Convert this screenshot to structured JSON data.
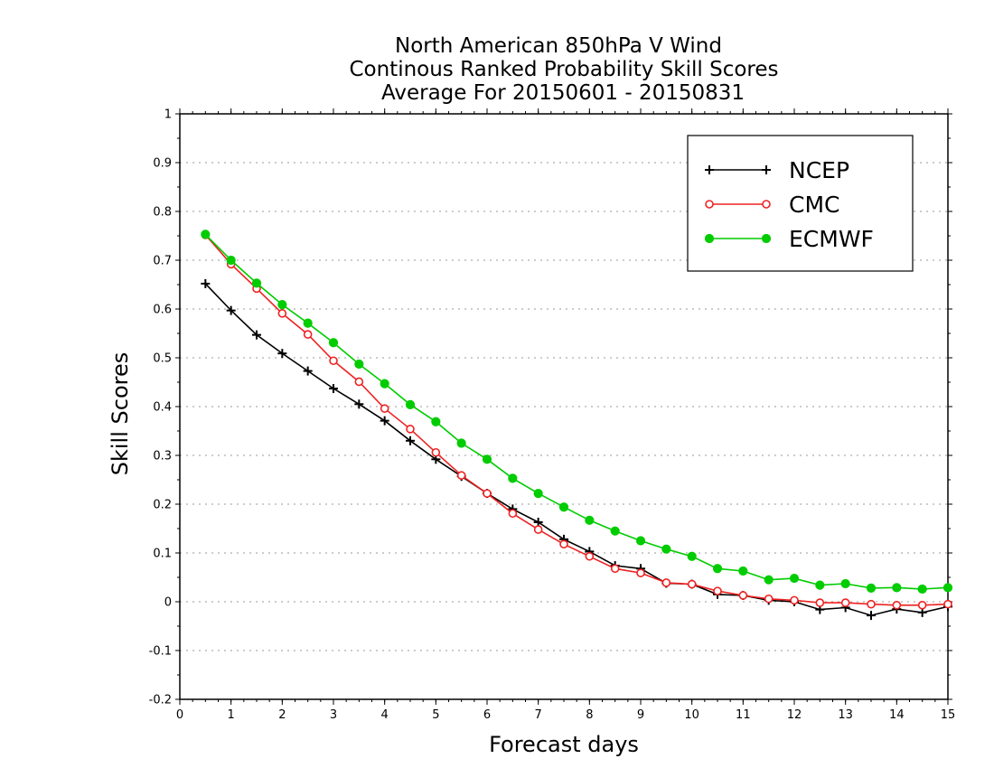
{
  "chart_data": {
    "type": "line",
    "title_lines": [
      "North American 850hPa V Wind",
      "Continous Ranked Probability Skill Scores",
      "Average For 20150601 - 20150831"
    ],
    "xlabel": "Forecast days",
    "ylabel": "Skill Scores",
    "xlim": [
      0,
      15
    ],
    "ylim": [
      -0.2,
      1
    ],
    "x_ticks": [
      0,
      1,
      2,
      3,
      4,
      5,
      6,
      7,
      8,
      9,
      10,
      11,
      12,
      13,
      14,
      15
    ],
    "x_tick_labels": [
      "0",
      "1",
      "2",
      "3",
      "4",
      "5",
      "6",
      "7",
      "8",
      "9",
      "10",
      "11",
      "12",
      "13",
      "14",
      "15"
    ],
    "y_ticks": [
      -0.2,
      -0.1,
      0,
      0.1,
      0.2,
      0.3,
      0.4,
      0.5,
      0.6,
      0.7,
      0.8,
      0.9,
      1
    ],
    "y_tick_labels": [
      "-0.2",
      "-0.1",
      "0",
      "0.1",
      "0.2",
      "0.3",
      "0.4",
      "0.5",
      "0.6",
      "0.7",
      "0.8",
      "0.9",
      "1"
    ],
    "grid": true,
    "legend_position": "top-right",
    "x": [
      0.5,
      1,
      1.5,
      2,
      2.5,
      3,
      3.5,
      4,
      4.5,
      5,
      5.5,
      6,
      6.5,
      7,
      7.5,
      8,
      8.5,
      9,
      9.5,
      10,
      10.5,
      11,
      11.5,
      12,
      12.5,
      13,
      13.5,
      14,
      14.5,
      15
    ],
    "series": [
      {
        "name": "NCEP",
        "color": "#000000",
        "marker": "plus",
        "values": [
          0.652,
          0.597,
          0.547,
          0.509,
          0.473,
          0.437,
          0.405,
          0.371,
          0.33,
          0.292,
          0.257,
          0.222,
          0.19,
          0.163,
          0.128,
          0.103,
          0.074,
          0.068,
          0.038,
          0.036,
          0.015,
          0.013,
          0.003,
          0.0,
          -0.016,
          -0.012,
          -0.028,
          -0.015,
          -0.022,
          -0.01
        ]
      },
      {
        "name": "CMC",
        "color": "#ee2222",
        "marker": "open-circle",
        "values": [
          0.752,
          0.692,
          0.642,
          0.591,
          0.548,
          0.494,
          0.451,
          0.396,
          0.354,
          0.306,
          0.259,
          0.222,
          0.181,
          0.148,
          0.118,
          0.093,
          0.068,
          0.059,
          0.039,
          0.036,
          0.022,
          0.013,
          0.006,
          0.003,
          -0.002,
          -0.002,
          -0.005,
          -0.007,
          -0.007,
          -0.005
        ]
      },
      {
        "name": "ECMWF",
        "color": "#00cc00",
        "marker": "filled-circle",
        "values": [
          0.753,
          0.7,
          0.653,
          0.609,
          0.571,
          0.531,
          0.487,
          0.447,
          0.404,
          0.369,
          0.325,
          0.292,
          0.253,
          0.222,
          0.194,
          0.167,
          0.145,
          0.125,
          0.108,
          0.093,
          0.068,
          0.063,
          0.045,
          0.048,
          0.034,
          0.037,
          0.028,
          0.029,
          0.026,
          0.029
        ]
      }
    ]
  }
}
